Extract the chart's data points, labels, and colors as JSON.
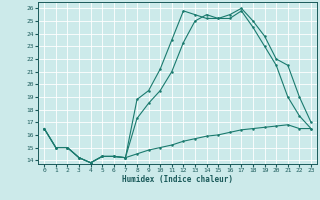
{
  "xlabel": "Humidex (Indice chaleur)",
  "xlim": [
    0,
    23
  ],
  "ylim": [
    14,
    26
  ],
  "xticks": [
    0,
    1,
    2,
    3,
    4,
    5,
    6,
    7,
    8,
    9,
    10,
    11,
    12,
    13,
    14,
    15,
    16,
    17,
    18,
    19,
    20,
    21,
    22,
    23
  ],
  "yticks": [
    14,
    15,
    16,
    17,
    18,
    19,
    20,
    21,
    22,
    23,
    24,
    25,
    26
  ],
  "bg_color": "#cceaea",
  "grid_color": "#ffffff",
  "line_color": "#1a7a6e",
  "line1_x": [
    0,
    1,
    2,
    3,
    4,
    5,
    6,
    7,
    8,
    9,
    10,
    11,
    12,
    13,
    14,
    15,
    16,
    17,
    18,
    19,
    20,
    21,
    22,
    23
  ],
  "line1_y": [
    16.5,
    15.0,
    15.0,
    14.2,
    13.8,
    14.3,
    14.3,
    14.2,
    14.5,
    14.8,
    15.0,
    15.2,
    15.5,
    15.7,
    15.9,
    16.0,
    16.2,
    16.4,
    16.5,
    16.6,
    16.7,
    16.8,
    16.5,
    16.5
  ],
  "line2_x": [
    0,
    1,
    2,
    3,
    4,
    5,
    6,
    7,
    8,
    9,
    10,
    11,
    12,
    13,
    14,
    15,
    16,
    17,
    18,
    19,
    20,
    21,
    22,
    23
  ],
  "line2_y": [
    16.5,
    15.0,
    15.0,
    14.2,
    13.8,
    14.3,
    14.3,
    14.2,
    17.3,
    18.5,
    19.5,
    21.0,
    23.3,
    25.0,
    25.5,
    25.2,
    25.2,
    25.8,
    24.5,
    23.0,
    21.5,
    19.0,
    17.5,
    16.5
  ],
  "line3_x": [
    0,
    1,
    2,
    3,
    4,
    5,
    6,
    7,
    8,
    9,
    10,
    11,
    12,
    13,
    14,
    15,
    16,
    17,
    18,
    19,
    20,
    21,
    22,
    23
  ],
  "line3_y": [
    16.5,
    15.0,
    15.0,
    14.2,
    13.8,
    14.3,
    14.3,
    14.2,
    18.8,
    19.5,
    21.2,
    23.5,
    25.8,
    25.5,
    25.2,
    25.2,
    25.5,
    26.0,
    25.0,
    23.8,
    22.0,
    21.5,
    19.0,
    17.0
  ]
}
